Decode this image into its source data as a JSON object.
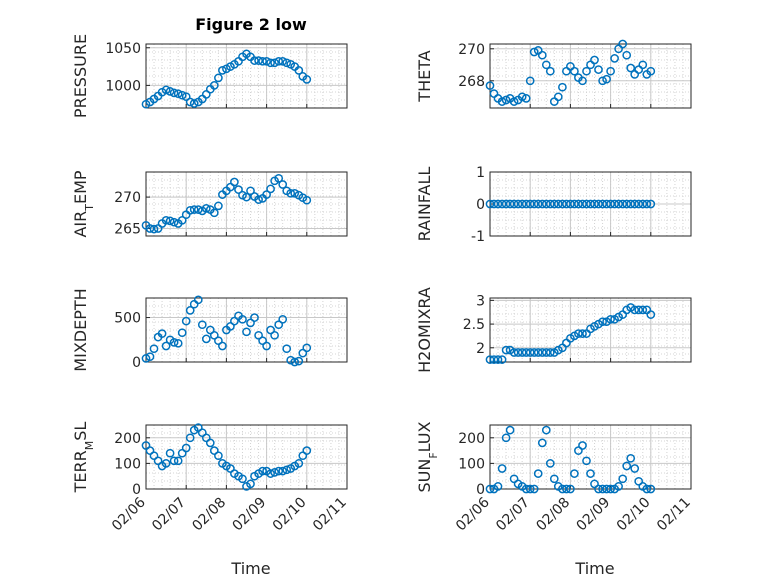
{
  "figure": {
    "title": "Figure 2 low",
    "xlabel": "Time",
    "x_ticks": [
      "02/06",
      "02/07",
      "02/08",
      "02/09",
      "02/10",
      "02/11"
    ],
    "marker_color": "#0072BD"
  },
  "chart_data": [
    {
      "type": "scatter",
      "ylabel": "PRESSURE",
      "ylim": [
        970,
        1055
      ],
      "yticks": [
        "1000",
        "1050"
      ],
      "grid": true,
      "xlim": [
        0,
        5
      ],
      "x": [
        0.0,
        0.1,
        0.2,
        0.3,
        0.4,
        0.5,
        0.6,
        0.7,
        0.8,
        0.9,
        1.0,
        1.1,
        1.2,
        1.3,
        1.4,
        1.5,
        1.6,
        1.7,
        1.8,
        1.9,
        2.0,
        2.1,
        2.2,
        2.3,
        2.4,
        2.5,
        2.6,
        2.7,
        2.8,
        2.9,
        3.0,
        3.1,
        3.2,
        3.3,
        3.4,
        3.5,
        3.6,
        3.7,
        3.8,
        3.9,
        4.0
      ],
      "y": [
        975,
        978,
        982,
        986,
        991,
        994,
        992,
        990,
        989,
        987,
        985,
        978,
        976,
        978,
        982,
        988,
        995,
        1000,
        1010,
        1020,
        1022,
        1025,
        1028,
        1032,
        1038,
        1042,
        1038,
        1033,
        1033,
        1032,
        1032,
        1030,
        1030,
        1032,
        1032,
        1030,
        1028,
        1025,
        1020,
        1012,
        1008
      ]
    },
    {
      "type": "scatter",
      "ylabel": "THETA",
      "ylim": [
        266.3,
        270.3
      ],
      "yticks": [
        "268",
        "270"
      ],
      "grid": true,
      "xlim": [
        0,
        5
      ],
      "x": [
        0.0,
        0.1,
        0.2,
        0.3,
        0.4,
        0.5,
        0.6,
        0.7,
        0.8,
        0.9,
        1.0,
        1.1,
        1.2,
        1.3,
        1.4,
        1.5,
        1.6,
        1.7,
        1.8,
        1.9,
        2.0,
        2.1,
        2.2,
        2.3,
        2.4,
        2.5,
        2.6,
        2.7,
        2.8,
        2.9,
        3.0,
        3.1,
        3.2,
        3.3,
        3.4,
        3.5,
        3.6,
        3.7,
        3.8,
        3.9,
        4.0
      ],
      "y": [
        267.7,
        267.2,
        266.9,
        266.7,
        266.8,
        266.9,
        266.7,
        266.8,
        267.0,
        266.9,
        268.0,
        269.8,
        269.9,
        269.6,
        269.0,
        268.6,
        266.7,
        267.0,
        267.6,
        268.6,
        268.9,
        268.6,
        268.2,
        268.0,
        268.6,
        269.0,
        269.3,
        268.7,
        268.0,
        268.1,
        268.6,
        269.4,
        270.0,
        270.3,
        269.6,
        268.8,
        268.4,
        268.7,
        269.0,
        268.4,
        268.6
      ]
    },
    {
      "type": "scatter",
      "ylabel": "AIR_TEMP",
      "ylim": [
        263.8,
        274
      ],
      "yticks": [
        "265",
        "270"
      ],
      "grid": true,
      "xlim": [
        0,
        5
      ],
      "x": [
        0.0,
        0.1,
        0.2,
        0.3,
        0.4,
        0.5,
        0.6,
        0.7,
        0.8,
        0.9,
        1.0,
        1.1,
        1.2,
        1.3,
        1.4,
        1.5,
        1.6,
        1.7,
        1.8,
        1.9,
        2.0,
        2.1,
        2.2,
        2.3,
        2.4,
        2.5,
        2.6,
        2.7,
        2.8,
        2.9,
        3.0,
        3.1,
        3.2,
        3.3,
        3.4,
        3.5,
        3.6,
        3.7,
        3.8,
        3.9,
        4.0
      ],
      "y": [
        265.5,
        265.0,
        264.9,
        265.0,
        265.8,
        266.3,
        266.2,
        266.0,
        265.8,
        266.3,
        267.2,
        267.9,
        268.0,
        268.0,
        267.8,
        268.2,
        268.0,
        267.5,
        268.6,
        270.4,
        271.0,
        271.6,
        272.4,
        271.2,
        270.3,
        270.0,
        271.0,
        270.1,
        269.6,
        269.8,
        270.4,
        271.3,
        272.6,
        273.0,
        272.0,
        271.0,
        270.6,
        270.6,
        270.3,
        269.9,
        269.5
      ]
    },
    {
      "type": "scatter",
      "ylabel": "RAINFALL",
      "ylim": [
        -1,
        1
      ],
      "yticks": [
        "-1",
        "0",
        "1"
      ],
      "grid": true,
      "xlim": [
        0,
        5
      ],
      "x": [
        0.0,
        0.1,
        0.2,
        0.3,
        0.4,
        0.5,
        0.6,
        0.7,
        0.8,
        0.9,
        1.0,
        1.1,
        1.2,
        1.3,
        1.4,
        1.5,
        1.6,
        1.7,
        1.8,
        1.9,
        2.0,
        2.1,
        2.2,
        2.3,
        2.4,
        2.5,
        2.6,
        2.7,
        2.8,
        2.9,
        3.0,
        3.1,
        3.2,
        3.3,
        3.4,
        3.5,
        3.6,
        3.7,
        3.8,
        3.9,
        4.0
      ],
      "y": [
        0,
        0,
        0,
        0,
        0,
        0,
        0,
        0,
        0,
        0,
        0,
        0,
        0,
        0,
        0,
        0,
        0,
        0,
        0,
        0,
        0,
        0,
        0,
        0,
        0,
        0,
        0,
        0,
        0,
        0,
        0,
        0,
        0,
        0,
        0,
        0,
        0,
        0,
        0,
        0,
        0
      ]
    },
    {
      "type": "scatter",
      "ylabel": "MIXDEPTH",
      "ylim": [
        0,
        720
      ],
      "yticks": [
        "0",
        "500"
      ],
      "grid": true,
      "xlim": [
        0,
        5
      ],
      "x": [
        0.0,
        0.1,
        0.2,
        0.3,
        0.4,
        0.5,
        0.6,
        0.7,
        0.8,
        0.9,
        1.0,
        1.1,
        1.2,
        1.3,
        1.4,
        1.5,
        1.6,
        1.7,
        1.8,
        1.9,
        2.0,
        2.1,
        2.2,
        2.3,
        2.4,
        2.5,
        2.6,
        2.7,
        2.8,
        2.9,
        3.0,
        3.1,
        3.2,
        3.3,
        3.4,
        3.5,
        3.6,
        3.7,
        3.8,
        3.9,
        4.0
      ],
      "y": [
        40,
        60,
        150,
        280,
        320,
        180,
        250,
        220,
        210,
        330,
        460,
        580,
        650,
        700,
        420,
        260,
        360,
        300,
        240,
        180,
        360,
        400,
        460,
        520,
        480,
        340,
        440,
        500,
        300,
        240,
        180,
        360,
        300,
        420,
        480,
        150,
        20,
        0,
        10,
        100,
        160
      ]
    },
    {
      "type": "scatter",
      "ylabel": "H2OMIXRA",
      "ylim": [
        1.7,
        3.05
      ],
      "yticks": [
        "2",
        "2.5",
        "3"
      ],
      "grid": true,
      "xlim": [
        0,
        5
      ],
      "x": [
        0.0,
        0.1,
        0.2,
        0.3,
        0.4,
        0.5,
        0.6,
        0.7,
        0.8,
        0.9,
        1.0,
        1.1,
        1.2,
        1.3,
        1.4,
        1.5,
        1.6,
        1.7,
        1.8,
        1.9,
        2.0,
        2.1,
        2.2,
        2.3,
        2.4,
        2.5,
        2.6,
        2.7,
        2.8,
        2.9,
        3.0,
        3.1,
        3.2,
        3.3,
        3.4,
        3.5,
        3.6,
        3.7,
        3.8,
        3.9,
        4.0
      ],
      "y": [
        1.75,
        1.75,
        1.75,
        1.75,
        1.95,
        1.95,
        1.9,
        1.9,
        1.9,
        1.9,
        1.9,
        1.9,
        1.9,
        1.9,
        1.9,
        1.9,
        1.9,
        1.95,
        2.0,
        2.1,
        2.2,
        2.25,
        2.3,
        2.3,
        2.3,
        2.4,
        2.45,
        2.5,
        2.55,
        2.55,
        2.6,
        2.6,
        2.65,
        2.7,
        2.8,
        2.85,
        2.8,
        2.8,
        2.8,
        2.8,
        2.7
      ]
    },
    {
      "type": "scatter",
      "ylabel": "TERR_MSL",
      "ylim": [
        0,
        250
      ],
      "yticks": [
        "0",
        "100",
        "200"
      ],
      "grid": true,
      "xlim": [
        0,
        5
      ],
      "x": [
        0.0,
        0.1,
        0.2,
        0.3,
        0.4,
        0.5,
        0.6,
        0.7,
        0.8,
        0.9,
        1.0,
        1.1,
        1.2,
        1.3,
        1.4,
        1.5,
        1.6,
        1.7,
        1.8,
        1.9,
        2.0,
        2.1,
        2.2,
        2.3,
        2.4,
        2.5,
        2.6,
        2.7,
        2.8,
        2.9,
        3.0,
        3.1,
        3.2,
        3.3,
        3.4,
        3.5,
        3.6,
        3.7,
        3.8,
        3.9,
        4.0
      ],
      "y": [
        170,
        150,
        130,
        110,
        90,
        100,
        140,
        110,
        110,
        140,
        160,
        200,
        230,
        240,
        220,
        200,
        180,
        150,
        130,
        100,
        90,
        80,
        60,
        50,
        40,
        10,
        20,
        50,
        60,
        70,
        70,
        60,
        65,
        70,
        70,
        75,
        80,
        90,
        100,
        130,
        150
      ]
    },
    {
      "type": "scatter",
      "ylabel": "SUN_FLUX",
      "ylim": [
        0,
        250
      ],
      "yticks": [
        "0",
        "100",
        "200"
      ],
      "grid": true,
      "xlim": [
        0,
        5
      ],
      "x": [
        0.0,
        0.1,
        0.2,
        0.3,
        0.4,
        0.5,
        0.6,
        0.7,
        0.8,
        0.9,
        1.0,
        1.1,
        1.2,
        1.3,
        1.4,
        1.5,
        1.6,
        1.7,
        1.8,
        1.9,
        2.0,
        2.1,
        2.2,
        2.3,
        2.4,
        2.5,
        2.6,
        2.7,
        2.8,
        2.9,
        3.0,
        3.1,
        3.2,
        3.3,
        3.4,
        3.5,
        3.6,
        3.7,
        3.8,
        3.9,
        4.0
      ],
      "y": [
        0,
        0,
        10,
        80,
        200,
        230,
        40,
        20,
        10,
        0,
        0,
        0,
        60,
        180,
        230,
        100,
        40,
        10,
        0,
        0,
        0,
        60,
        150,
        170,
        110,
        60,
        20,
        0,
        0,
        0,
        0,
        0,
        10,
        40,
        90,
        120,
        80,
        30,
        10,
        0,
        0
      ]
    }
  ]
}
